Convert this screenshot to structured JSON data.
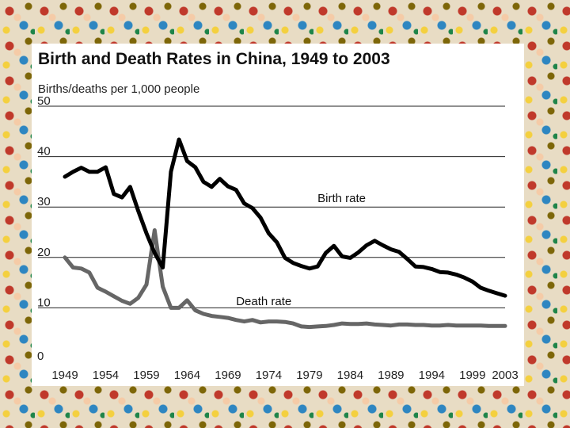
{
  "chart_data": {
    "type": "line",
    "title": "Birth and Death Rates in China, 1949 to 2003",
    "ylabel": "Births/deaths per 1,000 people",
    "xlabel": "",
    "ylim": [
      0,
      50
    ],
    "xlim": [
      1949,
      2003
    ],
    "yticks": [
      0,
      10,
      20,
      30,
      40,
      50
    ],
    "xticks": [
      1949,
      1954,
      1959,
      1964,
      1969,
      1974,
      1979,
      1984,
      1989,
      1994,
      1999,
      2003
    ],
    "grid": "horizontal",
    "series": [
      {
        "name": "Birth rate",
        "color": "#000000",
        "x": [
          1949,
          1950,
          1951,
          1952,
          1953,
          1954,
          1955,
          1956,
          1957,
          1958,
          1959,
          1960,
          1961,
          1962,
          1963,
          1964,
          1965,
          1966,
          1967,
          1968,
          1969,
          1970,
          1971,
          1972,
          1973,
          1974,
          1975,
          1976,
          1977,
          1978,
          1979,
          1980,
          1981,
          1982,
          1983,
          1984,
          1985,
          1986,
          1987,
          1988,
          1989,
          1990,
          1991,
          1992,
          1993,
          1994,
          1995,
          1996,
          1997,
          1998,
          1999,
          2000,
          2001,
          2002,
          2003
        ],
        "values": [
          36,
          37,
          37.8,
          37,
          37,
          37.9,
          32.6,
          31.9,
          34,
          29.2,
          24.8,
          20.9,
          18,
          37,
          43.4,
          39.1,
          37.9,
          35,
          34,
          35.6,
          34.1,
          33.4,
          30.7,
          29.8,
          27.9,
          24.8,
          23,
          19.9,
          18.9,
          18.3,
          17.8,
          18.2,
          20.9,
          22.3,
          20.2,
          19.9,
          21,
          22.4,
          23.3,
          22.4,
          21.6,
          21.1,
          19.7,
          18.2,
          18.1,
          17.7,
          17.1,
          17,
          16.6,
          16,
          15.2,
          14,
          13.4,
          12.9,
          12.4
        ]
      },
      {
        "name": "Death rate",
        "color": "#666666",
        "x": [
          1949,
          1950,
          1951,
          1952,
          1953,
          1954,
          1955,
          1956,
          1957,
          1958,
          1959,
          1960,
          1961,
          1962,
          1963,
          1964,
          1965,
          1966,
          1967,
          1968,
          1969,
          1970,
          1971,
          1972,
          1973,
          1974,
          1975,
          1976,
          1977,
          1978,
          1979,
          1980,
          1981,
          1982,
          1983,
          1984,
          1985,
          1986,
          1987,
          1988,
          1989,
          1990,
          1991,
          1992,
          1993,
          1994,
          1995,
          1996,
          1997,
          1998,
          1999,
          2000,
          2001,
          2002,
          2003
        ],
        "values": [
          20,
          18,
          17.8,
          17,
          14,
          13.2,
          12.3,
          11.4,
          10.8,
          12,
          14.6,
          25.4,
          14.2,
          10,
          10,
          11.5,
          9.5,
          8.8,
          8.4,
          8.2,
          8,
          7.6,
          7.3,
          7.6,
          7.1,
          7.3,
          7.3,
          7.2,
          6.9,
          6.3,
          6.2,
          6.3,
          6.4,
          6.6,
          6.9,
          6.8,
          6.8,
          6.9,
          6.7,
          6.6,
          6.5,
          6.7,
          6.7,
          6.6,
          6.6,
          6.5,
          6.5,
          6.6,
          6.5,
          6.5,
          6.5,
          6.5,
          6.4,
          6.4,
          6.4
        ]
      }
    ],
    "annotations": [
      {
        "text": "Birth rate",
        "x": 1980,
        "y": 31
      },
      {
        "text": "Death rate",
        "x": 1970,
        "y": 10.5
      }
    ]
  }
}
